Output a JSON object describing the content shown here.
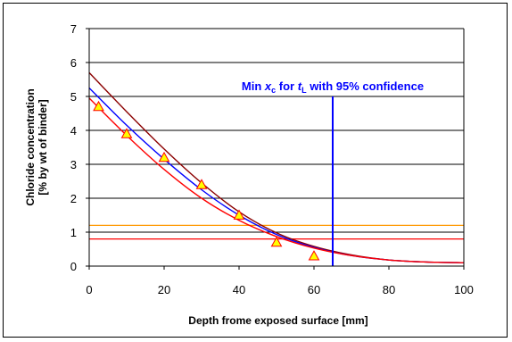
{
  "chart_data": {
    "type": "line",
    "xlabel": "Depth frome exposed surface [mm]",
    "ylabel_lines": [
      "Chloride concentration",
      "[% by wt of binder]"
    ],
    "xlim": [
      0,
      100
    ],
    "ylim": [
      0,
      7
    ],
    "x_ticks": [
      0,
      20,
      40,
      60,
      80,
      100
    ],
    "y_ticks": [
      0,
      1,
      2,
      3,
      4,
      5,
      6,
      7
    ],
    "grid": "horizontal",
    "measured_points": {
      "marker": "triangle",
      "color": "#ff0000",
      "fill": "#ffff00",
      "x": [
        2.5,
        10,
        20,
        30,
        40,
        50,
        60
      ],
      "y": [
        4.7,
        3.9,
        3.2,
        2.4,
        1.5,
        0.7,
        0.3
      ]
    },
    "fitted_curves": [
      {
        "color": "#8b0000",
        "x": [
          0,
          10,
          20,
          30,
          40,
          50,
          60,
          70,
          80,
          90,
          100
        ],
        "y": [
          5.7,
          4.55,
          3.45,
          2.45,
          1.6,
          0.98,
          0.58,
          0.33,
          0.18,
          0.12,
          0.1
        ]
      },
      {
        "color": "#0000ff",
        "x": [
          0,
          10,
          20,
          30,
          40,
          50,
          60,
          70,
          80,
          90,
          100
        ],
        "y": [
          5.25,
          4.15,
          3.15,
          2.25,
          1.5,
          0.93,
          0.55,
          0.31,
          0.18,
          0.12,
          0.1
        ]
      },
      {
        "color": "#ff0000",
        "x": [
          0,
          10,
          20,
          30,
          40,
          50,
          60,
          70,
          80,
          90,
          100
        ],
        "y": [
          4.95,
          3.85,
          2.85,
          2.0,
          1.35,
          0.87,
          0.53,
          0.31,
          0.18,
          0.12,
          0.1
        ]
      }
    ],
    "threshold_lines": [
      {
        "y": 1.2,
        "color": "#ff9900"
      },
      {
        "y": 0.8,
        "color": "#ff0000"
      }
    ],
    "vertical_marker": {
      "x": 65,
      "color": "#0000ff",
      "label_parts": [
        {
          "text": "Min "
        },
        {
          "text": "x",
          "italic": true
        },
        {
          "text": "c",
          "sub": true
        },
        {
          "text": " for "
        },
        {
          "text": "t",
          "italic": true
        },
        {
          "text": "L",
          "sub": true
        },
        {
          "text": " with 95% confidence"
        }
      ]
    }
  }
}
